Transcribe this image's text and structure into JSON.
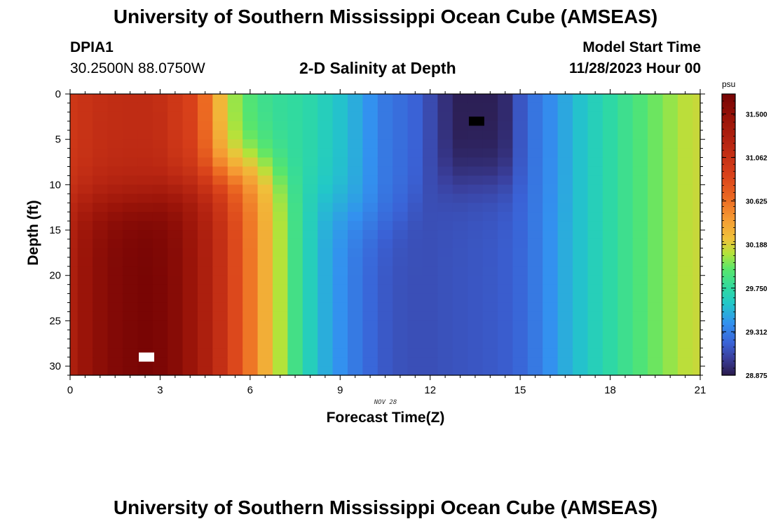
{
  "header": {
    "title": "University of Southern Mississippi Ocean Cube (AMSEAS)",
    "station_id": "DPIA1",
    "coordinates": "30.2500N  88.0750W",
    "plot_title": "2-D Salinity at Depth",
    "model_start_label": "Model Start Time",
    "model_start_value": "11/28/2023 Hour 00",
    "footer_title": "University of Southern Mississippi Ocean Cube (AMSEAS)"
  },
  "chart_data": {
    "type": "heatmap",
    "title": "2-D Salinity at Depth",
    "xlabel": "Forecast Time(Z)",
    "ylabel": "Depth (ft)",
    "x_date_label": "NOV 28",
    "xlim": [
      0,
      21
    ],
    "ylim": [
      0,
      31
    ],
    "x_ticks": [
      0,
      3,
      6,
      9,
      12,
      15,
      18,
      21
    ],
    "y_ticks": [
      0,
      5,
      10,
      15,
      20,
      25,
      30
    ],
    "x_minor_step": 0.5,
    "y_minor_step": 1,
    "colorbar": {
      "unit": "psu",
      "min": 28.875,
      "max": 31.7,
      "tick_values": [
        31.5,
        31.062,
        30.625,
        30.188,
        29.75,
        29.312,
        28.875
      ],
      "tick_labels": [
        "31.500",
        "31.062",
        "30.625",
        "30.188",
        "29.750",
        "29.312",
        "28.875"
      ]
    },
    "colormap": [
      {
        "v": 28.875,
        "c": "#2a1a4a"
      },
      {
        "v": 29.05,
        "c": "#3a3f9c"
      },
      {
        "v": 29.2,
        "c": "#3a62d6"
      },
      {
        "v": 29.4,
        "c": "#3391ef"
      },
      {
        "v": 29.6,
        "c": "#22c8c8"
      },
      {
        "v": 29.75,
        "c": "#2fd9a2"
      },
      {
        "v": 29.95,
        "c": "#5ae66a"
      },
      {
        "v": 30.1,
        "c": "#b3e33a"
      },
      {
        "v": 30.25,
        "c": "#f0c13a"
      },
      {
        "v": 30.45,
        "c": "#f59a33"
      },
      {
        "v": 30.65,
        "c": "#ec6a22"
      },
      {
        "v": 30.9,
        "c": "#d8401a"
      },
      {
        "v": 31.2,
        "c": "#b82612"
      },
      {
        "v": 31.45,
        "c": "#9a1409"
      },
      {
        "v": 31.7,
        "c": "#760404"
      }
    ],
    "time_grid": [
      0.0,
      0.5,
      1.0,
      1.5,
      2.0,
      2.5,
      3.0,
      3.5,
      4.0,
      4.5,
      5.0,
      5.5,
      6.0,
      6.5,
      7.0,
      7.5,
      8.0,
      8.5,
      9.0,
      9.5,
      10.0,
      10.5,
      11.0,
      11.5,
      12.0,
      12.5,
      13.0,
      13.5,
      14.0,
      14.5,
      15.0,
      15.5,
      16.0,
      16.5,
      17.0,
      17.5,
      18.0,
      18.5,
      19.0,
      19.5,
      20.0,
      20.5,
      21.0
    ],
    "surface_profile": [
      31.0,
      31.05,
      31.1,
      31.12,
      31.13,
      31.13,
      31.1,
      31.0,
      30.9,
      30.65,
      30.3,
      30.05,
      29.9,
      29.82,
      29.78,
      29.76,
      29.72,
      29.65,
      29.58,
      29.5,
      29.4,
      29.3,
      29.25,
      29.2,
      29.1,
      28.98,
      28.9,
      28.9,
      28.9,
      28.95,
      29.15,
      29.28,
      29.38,
      29.48,
      29.58,
      29.66,
      29.74,
      29.82,
      29.9,
      29.98,
      30.05,
      30.12,
      30.15
    ],
    "bottom_profile": [
      31.3,
      31.45,
      31.55,
      31.62,
      31.66,
      31.68,
      31.65,
      31.58,
      31.45,
      31.3,
      31.1,
      30.85,
      30.6,
      30.35,
      30.1,
      29.85,
      29.65,
      29.5,
      29.4,
      29.3,
      29.22,
      29.16,
      29.13,
      29.12,
      29.12,
      29.13,
      29.14,
      29.15,
      29.16,
      29.18,
      29.22,
      29.3,
      29.4,
      29.5,
      29.58,
      29.66,
      29.74,
      29.82,
      29.9,
      29.98,
      30.05,
      30.12,
      30.15
    ],
    "mix_depth_profile": [
      11.5,
      11.5,
      11.5,
      11.5,
      11.5,
      11.5,
      11.0,
      10.5,
      10.0,
      9.5,
      9.0,
      8.5,
      8.0,
      8.0,
      8.5,
      9.5,
      10.5,
      11.5,
      12.5,
      13.5,
      14.0,
      14.0,
      13.5,
      12.0,
      10.5,
      9.5,
      9.5,
      9.5,
      9.5,
      9.5,
      10.0,
      11.0,
      12.0,
      13.0,
      14.0,
      15.0,
      15.0,
      15.0,
      15.0,
      15.0,
      15.0,
      15.0,
      15.0
    ],
    "max_marker": {
      "time": 2.5,
      "depth": 29.0,
      "color": "#ffffff"
    },
    "min_marker": {
      "time": 13.5,
      "depth": 3.0,
      "color": "#000000"
    }
  }
}
